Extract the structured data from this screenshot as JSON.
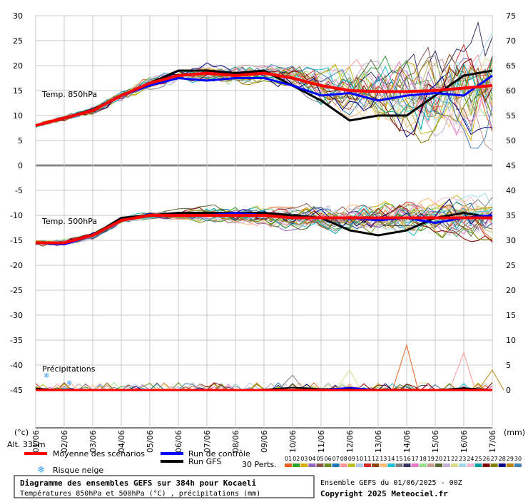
{
  "chart_data": {
    "type": "line",
    "title": "Diagramme des ensembles GEFS sur 384h pour Kocaeli",
    "subtitle": "Températures 850hPa et 500hPa (°C) , précipitations (mm)",
    "run_info": "Ensemble GEFS du 01/06/2025 - 00Z",
    "copyright": "Copyright 2025 Meteociel.fr",
    "altitude": "Alt. 335m",
    "left_unit": "(°c)",
    "right_unit": "(mm)",
    "y_left_ticks": [
      "30",
      "25",
      "20",
      "15",
      "10",
      "5",
      "0",
      "-5",
      "-10",
      "-15",
      "-20",
      "-25",
      "-30",
      "-35",
      "-40",
      "-45"
    ],
    "y_right_ticks": [
      "75",
      "70",
      "65",
      "60",
      "55",
      "50",
      "45",
      "40",
      "35",
      "30",
      "25",
      "20",
      "15",
      "10",
      "5",
      "0"
    ],
    "ylim_left": [
      -45,
      30
    ],
    "x_ticks": [
      "01/06",
      "02/06",
      "03/06",
      "04/06",
      "05/06",
      "06/06",
      "07/06",
      "08/06",
      "09/06",
      "10/06",
      "11/06",
      "12/06",
      "13/06",
      "14/06",
      "15/06",
      "16/06",
      "17/06"
    ],
    "panel_labels": {
      "t850": "Temp. 850hPa",
      "t500": "Temp. 500hPa",
      "precip": "Précipitations"
    },
    "legend": {
      "mean": "Moyenne des scénarios",
      "control": "Run de contrôle",
      "gfs": "Run GFS",
      "snow": "Risque neige",
      "perts": "30 Perts."
    },
    "colors": {
      "mean": "#ff0000",
      "control": "#0000ff",
      "gfs": "#000000",
      "snow": "#3399ff"
    },
    "members": [
      {
        "id": "01",
        "color": "#e8641e"
      },
      {
        "id": "02",
        "color": "#2ca02c"
      },
      {
        "id": "03",
        "color": "#d4b000"
      },
      {
        "id": "04",
        "color": "#9467bd"
      },
      {
        "id": "05",
        "color": "#8c564b"
      },
      {
        "id": "06",
        "color": "#6b8e23"
      },
      {
        "id": "07",
        "color": "#1f77b4"
      },
      {
        "id": "08",
        "color": "#ff9896"
      },
      {
        "id": "09",
        "color": "#bcbd22"
      },
      {
        "id": "10",
        "color": "#aec7e8"
      },
      {
        "id": "11",
        "color": "#d62728"
      },
      {
        "id": "12",
        "color": "#8b4513"
      },
      {
        "id": "13",
        "color": "#ffbb78"
      },
      {
        "id": "14",
        "color": "#17becf"
      },
      {
        "id": "15",
        "color": "#7f7f7f"
      },
      {
        "id": "16",
        "color": "#333366"
      },
      {
        "id": "17",
        "color": "#e377c2"
      },
      {
        "id": "18",
        "color": "#98df8a"
      },
      {
        "id": "19",
        "color": "#c49c94"
      },
      {
        "id": "20",
        "color": "#556b2f"
      },
      {
        "id": "21",
        "color": "#c5b0d5"
      },
      {
        "id": "22",
        "color": "#dbdb8d"
      },
      {
        "id": "23",
        "color": "#9edae5"
      },
      {
        "id": "24",
        "color": "#f7b6d2"
      },
      {
        "id": "25",
        "color": "#00a0a0"
      },
      {
        "id": "26",
        "color": "#800000"
      },
      {
        "id": "27",
        "color": "#808000"
      },
      {
        "id": "28",
        "color": "#000080"
      },
      {
        "id": "29",
        "color": "#b8860b"
      },
      {
        "id": "30",
        "color": "#4682b4"
      }
    ],
    "days": [
      0,
      1,
      2,
      3,
      4,
      5,
      6,
      7,
      8,
      9,
      10,
      11,
      12,
      13,
      14,
      15,
      16
    ],
    "t850_mean": [
      8,
      9.5,
      11,
      14,
      16.5,
      18,
      18.5,
      18,
      18.5,
      17.5,
      16,
      15,
      14.8,
      14.8,
      15,
      15.5,
      16
    ],
    "t850_control": [
      8,
      9.4,
      11,
      14,
      16,
      17.5,
      17,
      17.5,
      17.5,
      16,
      14,
      14.5,
      13,
      14,
      14.5,
      14,
      18
    ],
    "t850_gfs": [
      8,
      9.5,
      11.2,
      14,
      16.5,
      19,
      19,
      18.5,
      19,
      16,
      13,
      9,
      10,
      10,
      14,
      18,
      19
    ],
    "t500_mean": [
      -15.5,
      -15.5,
      -14,
      -11,
      -10,
      -10,
      -10,
      -10,
      -10,
      -10.5,
      -10.5,
      -10.5,
      -10.5,
      -10.5,
      -10.5,
      -10.5,
      -10.5
    ],
    "t500_control": [
      -15.5,
      -15.8,
      -14,
      -11,
      -10,
      -10,
      -10,
      -9.5,
      -10,
      -10.5,
      -10.5,
      -10.5,
      -11,
      -10.5,
      -11.5,
      -10.5,
      -10
    ],
    "t500_gfs": [
      -15.5,
      -15.5,
      -14,
      -10.5,
      -10,
      -9.5,
      -9.5,
      -9.5,
      -9.5,
      -10,
      -10.5,
      -13,
      -14,
      -13,
      -10.5,
      -9.5,
      -10.5
    ],
    "precip_mean": [
      0,
      0,
      0,
      0,
      0,
      0,
      0,
      0,
      0,
      0,
      0,
      0,
      0,
      0,
      0,
      0,
      0
    ],
    "precip_control": [
      0,
      0,
      0,
      0,
      0,
      0,
      0,
      0,
      0,
      0,
      0,
      0.5,
      0,
      0,
      0,
      0,
      0
    ],
    "precip_gfs": [
      0.3,
      0,
      0,
      0,
      0,
      0,
      0,
      0,
      0.1,
      0.5,
      0.2,
      0.3,
      0.1,
      0.1,
      0,
      0.4,
      0
    ],
    "precip_peaks": [
      [
        13,
        9
      ],
      [
        15,
        7.5
      ],
      [
        9,
        3
      ],
      [
        11,
        4
      ],
      [
        16,
        4
      ]
    ]
  }
}
